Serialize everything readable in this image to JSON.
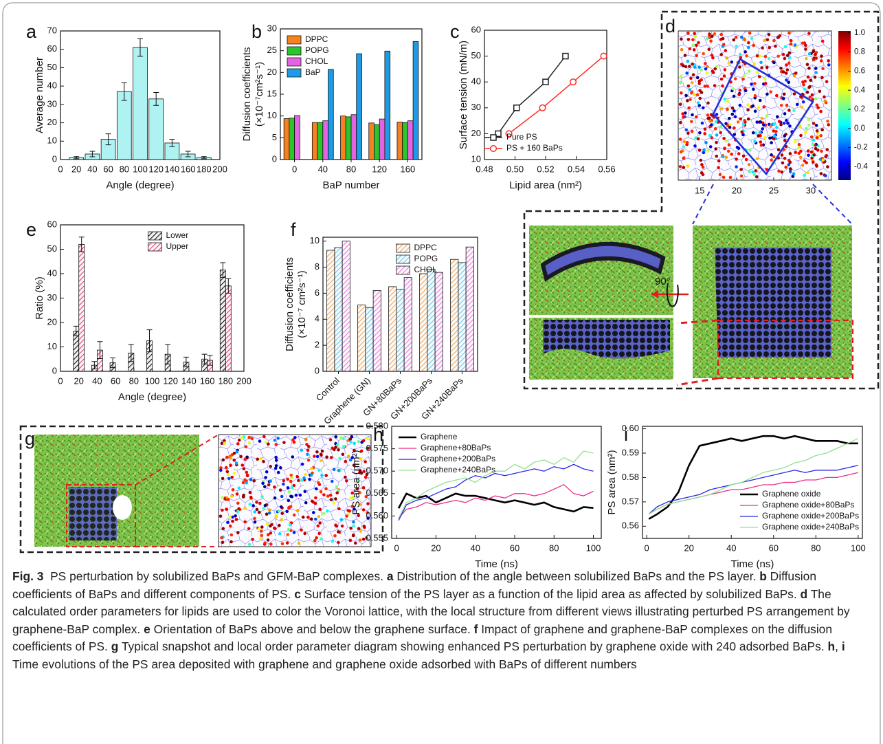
{
  "chart_data": [
    {
      "type": "bar",
      "panel": "a",
      "xlabel": "Angle (degree)",
      "ylabel": "Average number",
      "x": [
        20,
        40,
        60,
        80,
        100,
        120,
        140,
        160,
        180
      ],
      "values": [
        1,
        3,
        11,
        37,
        61,
        33,
        9,
        3,
        1
      ],
      "errors": [
        0.6,
        1.5,
        3,
        4.8,
        4.8,
        3.5,
        2,
        1.5,
        0.6
      ],
      "color": "#aef2f2",
      "xlim": [
        0,
        200
      ],
      "xticks": [
        0,
        20,
        40,
        60,
        80,
        100,
        120,
        140,
        160,
        180,
        200
      ],
      "ylim": [
        0,
        70
      ],
      "yticks": [
        0,
        10,
        20,
        30,
        40,
        50,
        60,
        70
      ]
    },
    {
      "type": "bar",
      "panel": "b",
      "xlabel": "BaP number",
      "ylabel": "Diffusion coefficients",
      "ylabel2": "(×10⁻⁷cm²s⁻¹)",
      "categories": [
        "0",
        "40",
        "80",
        "120",
        "160"
      ],
      "series": [
        {
          "name": "DPPC",
          "color": "#f58220",
          "values": [
            9.4,
            8.5,
            10.0,
            8.4,
            8.6
          ]
        },
        {
          "name": "POPG",
          "color": "#2ec42e",
          "values": [
            9.5,
            8.5,
            9.8,
            8.0,
            8.5
          ]
        },
        {
          "name": "CHOL",
          "color": "#e264e2",
          "values": [
            10.1,
            8.9,
            10.3,
            9.3,
            8.9
          ]
        },
        {
          "name": "BaP",
          "color": "#1e9be6",
          "values": [
            null,
            20.7,
            24.3,
            24.9,
            27.1
          ]
        }
      ],
      "ylim": [
        0,
        30
      ],
      "yticks": [
        0,
        5,
        10,
        15,
        20,
        25,
        30
      ],
      "legend": "upper left"
    },
    {
      "type": "line",
      "panel": "c",
      "xlabel": "Lipid area (nm²)",
      "ylabel": "Surface tension (mN/m)",
      "series": [
        {
          "name": "Pure PS",
          "color": "#222222",
          "marker": "square",
          "linewidth": 1.5,
          "x": [
            0.489,
            0.501,
            0.52,
            0.533
          ],
          "values": [
            20,
            30,
            40,
            50
          ]
        },
        {
          "name": "PS + 160 BaPs",
          "color": "#ff2a2a",
          "marker": "circle",
          "linewidth": 1.5,
          "x": [
            0.496,
            0.518,
            0.538,
            0.558
          ],
          "values": [
            20,
            30,
            40,
            50
          ]
        }
      ],
      "xlim": [
        0.48,
        0.56
      ],
      "xticks": [
        0.48,
        {
          "value": 0.5,
          "label": "0.50"
        },
        0.52,
        0.54,
        0.56
      ],
      "ylim": [
        10,
        60
      ],
      "yticks": [
        10,
        20,
        30,
        40,
        50,
        60
      ],
      "legend": "lower right"
    },
    {
      "type": "image",
      "panel": "d",
      "xlim": [
        12.1,
        32.8
      ],
      "xticks": [
        15,
        20,
        25,
        30
      ],
      "colorbar": {
        "lim": [
          -0.54,
          1.02
        ],
        "ticks": [
          {
            "value": 1,
            "label": "1.0"
          },
          0.8,
          0.6,
          0.4,
          0.2,
          {
            "value": 0,
            "label": "0.0"
          },
          -0.2,
          -0.4
        ]
      },
      "annotation": "90°"
    },
    {
      "type": "bar",
      "panel": "e",
      "xlabel": "Angle (degree)",
      "ylabel": "Ratio (%)",
      "hatch": true,
      "x": [
        20,
        40,
        60,
        80,
        100,
        120,
        140,
        160,
        180
      ],
      "series": [
        {
          "name": "Lower",
          "color": "#111111",
          "values": [
            16.5,
            2.5,
            3.5,
            7.5,
            12.5,
            7,
            3.8,
            5,
            41.5
          ],
          "errors": [
            2,
            1.5,
            2,
            3.5,
            4.5,
            4,
            2,
            2,
            3
          ]
        },
        {
          "name": "Upper",
          "color": "#e23c7a",
          "values": [
            52,
            8.7,
            null,
            null,
            null,
            null,
            null,
            4.5,
            35
          ],
          "errors": [
            3,
            3.5,
            null,
            null,
            null,
            null,
            null,
            2,
            3
          ]
        }
      ],
      "xlim": [
        0,
        200
      ],
      "xticks": [
        0,
        20,
        40,
        60,
        80,
        100,
        120,
        140,
        160,
        180,
        200
      ],
      "ylim": [
        0,
        60
      ],
      "yticks": [
        0,
        10,
        20,
        30,
        40,
        50,
        60
      ],
      "legend": "upper center"
    },
    {
      "type": "bar",
      "panel": "f",
      "ylabel": "Diffusion coefficients",
      "ylabel2": "(×10⁻⁷ cm²s⁻¹)",
      "hatch": true,
      "categories": [
        "Control",
        "Graphene (GN)",
        "GN+80BaPs",
        "GN+200BaPs",
        "GN+240BaPs"
      ],
      "series": [
        {
          "name": "DPPC",
          "color": "#e8a860",
          "values": [
            9.3,
            5.1,
            6.5,
            7.5,
            8.6
          ]
        },
        {
          "name": "POPG",
          "color": "#6cc4e8",
          "values": [
            9.5,
            4.9,
            6.3,
            7.85,
            8.35
          ]
        },
        {
          "name": "CHOL",
          "color": "#e27ad8",
          "values": [
            10.0,
            6.2,
            7.2,
            7.6,
            9.55
          ]
        }
      ],
      "ylim": [
        0,
        10.3
      ],
      "yticks": [
        0,
        2,
        4,
        6,
        8,
        10
      ],
      "legend": "upper center"
    },
    {
      "type": "image",
      "panel": "g"
    },
    {
      "type": "line",
      "panel": "h",
      "xlabel": "Time (ns)",
      "ylabel": "PS area (nm²)",
      "x": [
        1,
        5,
        10,
        15,
        20,
        25,
        30,
        35,
        40,
        45,
        50,
        55,
        60,
        65,
        70,
        75,
        80,
        85,
        90,
        95,
        100
      ],
      "series": [
        {
          "name": "Graphene",
          "color": "#000000",
          "linewidth": 2.6,
          "values": [
            0.5617,
            0.565,
            0.564,
            0.5645,
            0.563,
            0.564,
            0.565,
            0.5645,
            0.5645,
            0.564,
            0.5635,
            0.563,
            0.5635,
            0.563,
            0.5625,
            0.563,
            0.562,
            0.5615,
            0.561,
            0.562,
            0.5618
          ]
        },
        {
          "name": "Graphene+80BaPs",
          "color": "#ec2a84",
          "linewidth": 1.3,
          "values": [
            0.5595,
            0.5615,
            0.562,
            0.563,
            0.5625,
            0.563,
            0.5635,
            0.563,
            0.564,
            0.5635,
            0.5645,
            0.564,
            0.565,
            0.565,
            0.5645,
            0.565,
            0.566,
            0.567,
            0.565,
            0.5645,
            0.5655
          ]
        },
        {
          "name": "Graphene+200BaPs",
          "color": "#2626e6",
          "linewidth": 1.3,
          "values": [
            0.559,
            0.5625,
            0.5635,
            0.564,
            0.565,
            0.566,
            0.5665,
            0.568,
            0.569,
            0.5685,
            0.5695,
            0.569,
            0.5695,
            0.57,
            0.5705,
            0.57,
            0.571,
            0.5705,
            0.5715,
            0.5705,
            0.57
          ]
        },
        {
          "name": "Graphene+240BaPs",
          "color": "#92e092",
          "linewidth": 1.3,
          "values": [
            0.5595,
            0.563,
            0.564,
            0.5655,
            0.5665,
            0.5675,
            0.568,
            0.5685,
            0.5675,
            0.569,
            0.57,
            0.57,
            0.5715,
            0.5705,
            0.572,
            0.5725,
            0.5715,
            0.573,
            0.572,
            0.5745,
            0.574
          ]
        }
      ],
      "xlim": [
        -2.5,
        104
      ],
      "xticks": [
        0,
        20,
        40,
        60,
        80,
        100
      ],
      "ylim": [
        0.555,
        0.58
      ],
      "yticks": [
        0.555,
        {
          "value": 0.56,
          "label": "0.560"
        },
        0.565,
        {
          "value": 0.57,
          "label": "0.570"
        },
        0.575,
        {
          "value": 0.58,
          "label": "0.580"
        }
      ],
      "legend": "upper left"
    },
    {
      "type": "line",
      "panel": "i",
      "xlabel": "Time (ns)",
      "ylabel": "PS area (nm²)",
      "x": [
        1,
        5,
        10,
        15,
        20,
        25,
        30,
        35,
        40,
        45,
        50,
        55,
        60,
        65,
        70,
        75,
        80,
        85,
        90,
        95,
        100
      ],
      "series": [
        {
          "name": "Graphene oxide",
          "color": "#000000",
          "linewidth": 2.6,
          "values": [
            0.563,
            0.565,
            0.568,
            0.574,
            0.585,
            0.593,
            0.594,
            0.595,
            0.596,
            0.595,
            0.596,
            0.597,
            0.597,
            0.596,
            0.597,
            0.596,
            0.595,
            0.595,
            0.595,
            0.594,
            0.594
          ]
        },
        {
          "name": "Graphene oxide+80BaPs",
          "color": "#ec2a84",
          "linewidth": 1.3,
          "values": [
            0.565,
            0.567,
            0.569,
            0.57,
            0.571,
            0.572,
            0.573,
            0.574,
            0.575,
            0.575,
            0.576,
            0.577,
            0.577,
            0.578,
            0.578,
            0.579,
            0.579,
            0.58,
            0.58,
            0.581,
            0.582
          ]
        },
        {
          "name": "Graphene oxide+200BaPs",
          "color": "#2626e6",
          "linewidth": 1.3,
          "values": [
            0.565,
            0.568,
            0.57,
            0.571,
            0.572,
            0.573,
            0.575,
            0.576,
            0.577,
            0.578,
            0.579,
            0.58,
            0.581,
            0.582,
            0.583,
            0.582,
            0.583,
            0.583,
            0.583,
            0.584,
            0.585
          ]
        },
        {
          "name": "Graphene oxide+240BaPs",
          "color": "#92e092",
          "linewidth": 1.3,
          "values": [
            0.565,
            0.567,
            0.569,
            0.57,
            0.571,
            0.572,
            0.573,
            0.575,
            0.577,
            0.578,
            0.58,
            0.582,
            0.583,
            0.584,
            0.586,
            0.587,
            0.589,
            0.59,
            0.592,
            0.594,
            0.596
          ]
        }
      ],
      "xlim": [
        -2,
        102
      ],
      "xticks": [
        0,
        20,
        40,
        60,
        80,
        100
      ],
      "ylim": [
        0.555,
        0.601
      ],
      "yticks": [
        0.56,
        0.57,
        0.58,
        0.59,
        {
          "value": 0.6,
          "label": "0.60"
        }
      ],
      "legend": "lower right"
    }
  ],
  "caption": {
    "runs": [
      {
        "text": "Fig. 3",
        "bold": true
      },
      {
        "text": "  PS perturbation by solubilized BaPs and GFM-BaP complexes. ",
        "bold": false
      },
      {
        "text": "a",
        "bold": true
      },
      {
        "text": " Distribution of the angle between solubilized BaPs and the PS layer. ",
        "bold": false
      },
      {
        "text": "b",
        "bold": true
      },
      {
        "text": " Diffusion coefficients of BaPs and different components of PS. ",
        "bold": false
      },
      {
        "text": "c",
        "bold": true
      },
      {
        "text": " Surface tension of the PS layer as a function of the lipid area as affected by solubilized BaPs. ",
        "bold": false
      },
      {
        "text": "d",
        "bold": true
      },
      {
        "text": " The calculated order parameters for lipids are used to color the Voronoi lattice, with the local structure from different views illustrating perturbed PS arrangement by graphene-BaP complex. ",
        "bold": false
      },
      {
        "text": "e",
        "bold": true
      },
      {
        "text": " Orientation of BaPs above and below the graphene surface. ",
        "bold": false
      },
      {
        "text": "f",
        "bold": true
      },
      {
        "text": " Impact of graphene and graphene-BaP complexes on the diffusion coefficients of PS. ",
        "bold": false
      },
      {
        "text": "g",
        "bold": true
      },
      {
        "text": " Typical snapshot and local order parameter diagram showing enhanced PS perturbation by graphene oxide with 240 adsorbed BaPs. ",
        "bold": false
      },
      {
        "text": "h",
        "bold": true
      },
      {
        "text": ", ",
        "bold": false
      },
      {
        "text": "i",
        "bold": true
      },
      {
        "text": " Time evolutions of the PS area deposited with graphene and graphene oxide adsorbed with BaPs of different numbers",
        "bold": false
      }
    ]
  }
}
